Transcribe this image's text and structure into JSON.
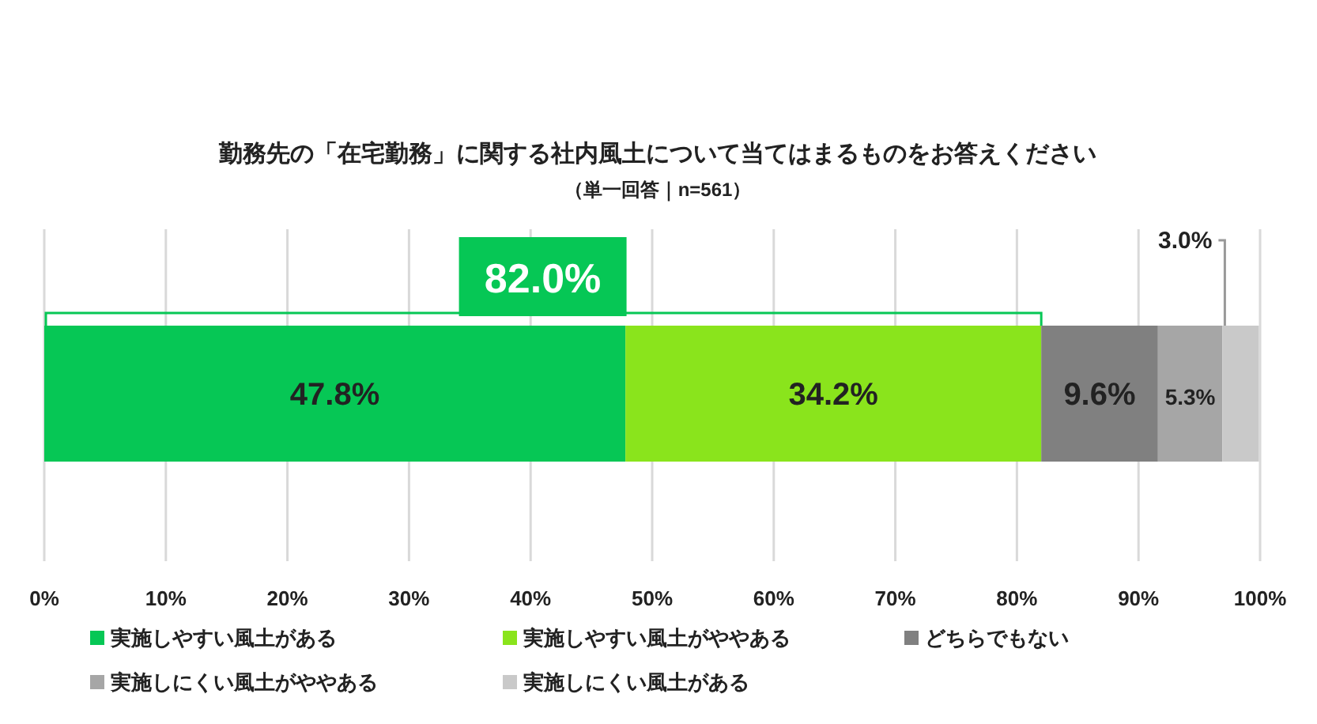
{
  "chart_data": {
    "type": "bar",
    "orientation": "horizontal",
    "stacked": true,
    "title": "勤務先の「在宅勤務」に関する社内風土について当てはまるものをお答えください",
    "subtitle": "（単一回答｜n=561）",
    "categories": [
      null
    ],
    "series": [
      {
        "name": "実施しやすい風土がある",
        "color": "#06c755",
        "values": [
          47.8
        ],
        "value_labels": [
          "47.8%"
        ]
      },
      {
        "name": "実施しやすい風土がややある",
        "color": "#8ae41c",
        "values": [
          34.2
        ],
        "value_labels": [
          "34.2%"
        ]
      },
      {
        "name": "どちらでもない",
        "color": "#808080",
        "values": [
          9.6
        ],
        "value_labels": [
          "9.6%"
        ]
      },
      {
        "name": "実施しにくい風土がややある",
        "color": "#a6a6a6",
        "values": [
          5.3
        ],
        "value_labels": [
          "5.3%"
        ]
      },
      {
        "name": "実施しにくい風土がある",
        "color": "#c9c9c9",
        "values": [
          3.0
        ],
        "value_labels": [
          "3.0%"
        ]
      }
    ],
    "annotations": [
      "82.0%"
    ],
    "xlim": [
      0,
      100
    ],
    "xticks": [
      {
        "value": 0,
        "label": "0%"
      },
      {
        "value": 10,
        "label": "10%"
      },
      {
        "value": 20,
        "label": "20%"
      },
      {
        "value": 30,
        "label": "30%"
      },
      {
        "value": 40,
        "label": "40%"
      },
      {
        "value": 50,
        "label": "50%"
      },
      {
        "value": 60,
        "label": "60%"
      },
      {
        "value": 70,
        "label": "70%"
      },
      {
        "value": 80,
        "label": "80%"
      },
      {
        "value": 90,
        "label": "90%"
      },
      {
        "value": 100,
        "label": "100%"
      }
    ],
    "grid": "x",
    "legend": "bottom"
  }
}
